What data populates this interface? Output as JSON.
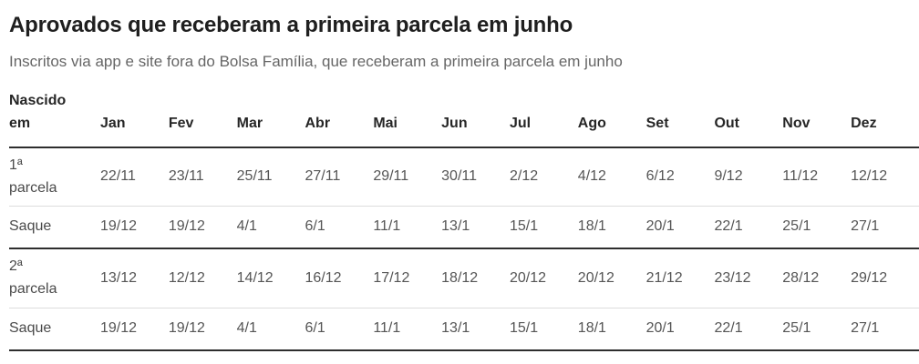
{
  "chart_data": {
    "type": "table",
    "title": "Aprovados que receberam a primeira parcela em junho",
    "subtitle": "Inscritos via app e site fora do Bolsa Família, que receberam a primeira parcela em junho",
    "corner_header": "Nascido\nem",
    "columns": [
      "Jan",
      "Fev",
      "Mar",
      "Abr",
      "Mai",
      "Jun",
      "Jul",
      "Ago",
      "Set",
      "Out",
      "Nov",
      "Dez"
    ],
    "rows": [
      {
        "label": "1ª\nparcela",
        "cells": [
          "22/11",
          "23/11",
          "25/11",
          "27/11",
          "29/11",
          "30/11",
          "2/12",
          "4/12",
          "6/12",
          "9/12",
          "11/12",
          "12/12"
        ]
      },
      {
        "label": "Saque",
        "cells": [
          "19/12",
          "19/12",
          "4/1",
          "6/1",
          "11/1",
          "13/1",
          "15/1",
          "18/1",
          "20/1",
          "22/1",
          "25/1",
          "27/1"
        ]
      },
      {
        "label": "2ª\nparcela",
        "cells": [
          "13/12",
          "12/12",
          "14/12",
          "16/12",
          "17/12",
          "18/12",
          "20/12",
          "20/12",
          "21/12",
          "23/12",
          "28/12",
          "29/12"
        ]
      },
      {
        "label": "Saque",
        "cells": [
          "19/12",
          "19/12",
          "4/1",
          "6/1",
          "11/1",
          "13/1",
          "15/1",
          "18/1",
          "20/1",
          "22/1",
          "25/1",
          "27/1"
        ]
      }
    ],
    "layout": {
      "legend": "none",
      "grid": "horizontal-rules-only",
      "column_align": "left"
    }
  },
  "colors": {
    "heading_text": "#1f1f1f",
    "subtitle_text": "#666666",
    "header_text": "#262626",
    "cell_text": "#555555",
    "border_dark": "#2e2e2e",
    "border_light": "#dddddd",
    "background": "#ffffff"
  }
}
